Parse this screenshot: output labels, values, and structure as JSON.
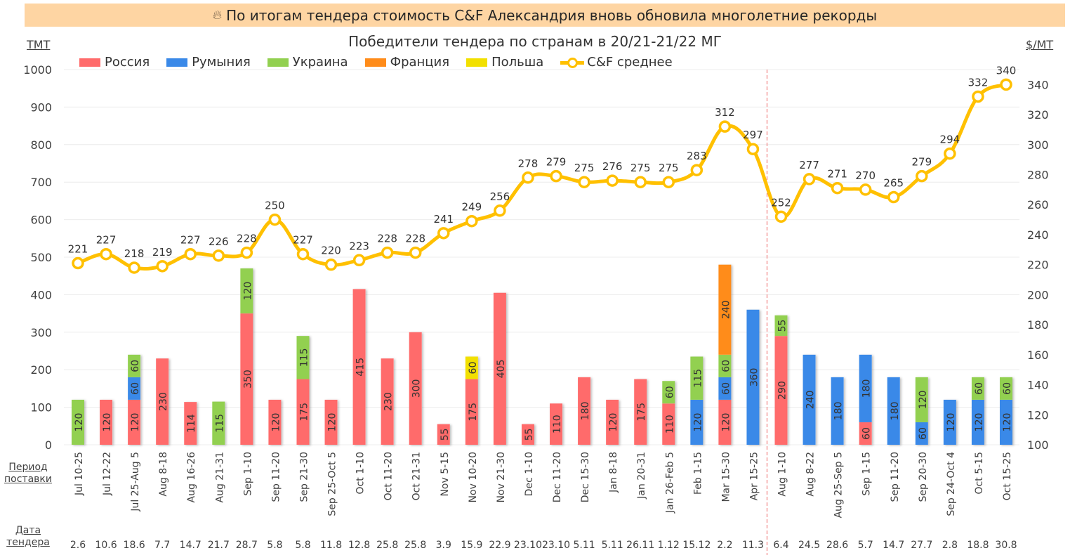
{
  "banner": {
    "icon": "flame-icon",
    "text": "По итогам тендера стоимость C&F Александрия вновь обновила многолетние рекорды"
  },
  "left_unit": "ТМТ",
  "right_unit": "$/МТ",
  "row_labels": {
    "period": [
      "Период",
      "поставки"
    ],
    "tender_date": [
      "Дата",
      "тендера"
    ]
  },
  "colors": {
    "russia": "#ff6b6b",
    "romania": "#3a89e8",
    "ukraine": "#92d050",
    "france": "#ff8c1a",
    "poland": "#f2e000",
    "line": "#ffc000",
    "banner": "#fed5a3",
    "separator": "#f08080"
  },
  "chart_data": {
    "type": "bar",
    "title": "Победители тендера по странам в 20/21-21/22 МГ",
    "xlabel": "",
    "ylabel": "ТМТ",
    "y2label": "$/МТ",
    "ylim": [
      0,
      1000
    ],
    "y2lim": [
      100,
      350
    ],
    "yticks": [
      0,
      100,
      200,
      300,
      400,
      500,
      600,
      700,
      800,
      900,
      1000
    ],
    "y2ticks": [
      100,
      120,
      140,
      160,
      180,
      200,
      220,
      240,
      260,
      280,
      300,
      320,
      340
    ],
    "grid": true,
    "legend_position": "top-left",
    "stacked": true,
    "season_separator_after_index": 24,
    "categories": [
      "Jul 10-25",
      "Jul 12-22",
      "Jul 25-Aug 5",
      "Aug 8-18",
      "Aug 16-26",
      "Aug 21-31",
      "Sep 1-10",
      "Sep 11-20",
      "Sep 21-30",
      "Sep 25-Oct 5",
      "Oct 1-10",
      "Oct 11-20",
      "Oct 21-31",
      "Nov 5-15",
      "Nov 10-20",
      "Nov 21-30",
      "Dec 1-10",
      "Dec 11-20",
      "Dec 15-30",
      "Jan 8-18",
      "Jan 20-31",
      "Jan 26-Feb 5",
      "Feb 1-15",
      "Mar 15-30",
      "Apr 15-25",
      "Aug 1-10",
      "Aug 8-22",
      "Aug 25-Sep 5",
      "Sep 1-15",
      "Sep 11-20",
      "Sep 20-30",
      "Sep 24-Oct 4",
      "Oct 5-15",
      "Oct 15-25"
    ],
    "tender_dates": [
      "2.6",
      "10.6",
      "18.6",
      "7.7",
      "14.7",
      "21.7",
      "28.7",
      "5.8",
      "5.8",
      "11.8",
      "12.8",
      "25.8",
      "25.8",
      "3.9",
      "15.9",
      "22.9",
      "23.10",
      "23.10",
      "5.11",
      "5.11",
      "26.11",
      "1.12",
      "15.12",
      "2.2",
      "11.3",
      "6.4",
      "24.5",
      "28.6",
      "5.7",
      "14.7",
      "27.7",
      "2.8",
      "18.8",
      "30.8"
    ],
    "series": [
      {
        "name": "Россия",
        "key": "russia",
        "axis": "left",
        "type": "bar",
        "values": [
          0,
          120,
          120,
          230,
          114,
          0,
          350,
          120,
          175,
          120,
          415,
          230,
          300,
          55,
          175,
          405,
          55,
          110,
          180,
          120,
          175,
          110,
          0,
          120,
          0,
          290,
          0,
          0,
          60,
          0,
          0,
          0,
          0,
          0
        ]
      },
      {
        "name": "Румыния",
        "key": "romania",
        "axis": "left",
        "type": "bar",
        "values": [
          0,
          0,
          60,
          0,
          0,
          0,
          0,
          0,
          0,
          0,
          0,
          0,
          0,
          0,
          0,
          0,
          0,
          0,
          0,
          0,
          0,
          0,
          120,
          60,
          360,
          0,
          240,
          180,
          180,
          180,
          60,
          120,
          120,
          120
        ]
      },
      {
        "name": "Украина",
        "key": "ukraine",
        "axis": "left",
        "type": "bar",
        "values": [
          120,
          0,
          60,
          0,
          0,
          115,
          120,
          0,
          115,
          0,
          0,
          0,
          0,
          0,
          0,
          0,
          0,
          0,
          0,
          0,
          0,
          60,
          115,
          60,
          0,
          55,
          0,
          0,
          0,
          0,
          120,
          0,
          60,
          60
        ]
      },
      {
        "name": "Франция",
        "key": "france",
        "axis": "left",
        "type": "bar",
        "values": [
          0,
          0,
          0,
          0,
          0,
          0,
          0,
          0,
          0,
          0,
          0,
          0,
          0,
          0,
          0,
          0,
          0,
          0,
          0,
          0,
          0,
          0,
          0,
          240,
          0,
          0,
          0,
          0,
          0,
          0,
          0,
          0,
          0,
          0
        ]
      },
      {
        "name": "Польша",
        "key": "poland",
        "axis": "left",
        "type": "bar",
        "values": [
          0,
          0,
          0,
          0,
          0,
          0,
          0,
          0,
          0,
          0,
          0,
          0,
          0,
          0,
          60,
          0,
          0,
          0,
          0,
          0,
          0,
          0,
          0,
          0,
          0,
          0,
          0,
          0,
          0,
          0,
          0,
          0,
          0,
          0
        ]
      },
      {
        "name": "C&F среднее",
        "key": "line",
        "axis": "right",
        "type": "line",
        "values": [
          221,
          227,
          218,
          219,
          227,
          226,
          228,
          250,
          227,
          220,
          223,
          228,
          228,
          241,
          249,
          256,
          278,
          279,
          275,
          276,
          275,
          275,
          283,
          312,
          297,
          252,
          277,
          271,
          270,
          265,
          279,
          294,
          332,
          340
        ]
      }
    ]
  }
}
